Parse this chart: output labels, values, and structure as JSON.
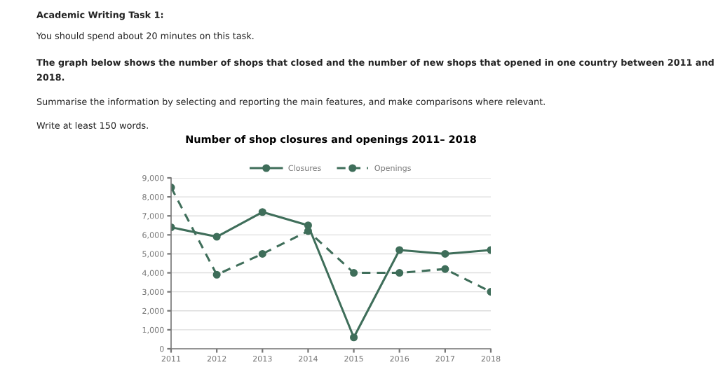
{
  "chart_data": {
    "type": "line",
    "title": "Number of shop closures and openings 2011– 2018",
    "annotations": [
      "Academic Writing Task 1:",
      "You should spend about 20 minutes on this task.",
      "The graph below shows the number of shops that closed and the number of new shops that opened in one country between 2011 and 2018.",
      "Summarise the information by selecting and reporting the main features, and make comparisons where relevant.",
      "Write at least 150 words."
    ],
    "x": [
      2011,
      2012,
      2013,
      2014,
      2015,
      2016,
      2017,
      2018
    ],
    "series": [
      {
        "name": "Closures",
        "color": "#3f6e5a",
        "line_style": "solid",
        "values": [
          6400,
          5900,
          7200,
          6500,
          600,
          5200,
          5000,
          5200
        ]
      },
      {
        "name": "Openings",
        "color": "#3f6e5a",
        "line_style": "dashed",
        "values": [
          8500,
          3900,
          5000,
          6200,
          4000,
          4000,
          4200,
          3000
        ]
      }
    ],
    "xlim": [
      2011,
      2018
    ],
    "xticks": [
      2011,
      2012,
      2013,
      2014,
      2015,
      2016,
      2017,
      2018
    ],
    "ylim": [
      0,
      9000
    ],
    "yticks": [
      {
        "value": 0,
        "label": "0"
      },
      {
        "value": 1000,
        "label": "1,000"
      },
      {
        "value": 2000,
        "label": "2,000"
      },
      {
        "value": 3000,
        "label": "3,000"
      },
      {
        "value": 4000,
        "label": "4,000"
      },
      {
        "value": 5000,
        "label": "5,000"
      },
      {
        "value": 6000,
        "label": "6,000"
      },
      {
        "value": 7000,
        "label": "7,000"
      },
      {
        "value": 8000,
        "label": "8,000"
      },
      {
        "value": 9000,
        "label": "9,000"
      }
    ],
    "grid": "y",
    "legend": "top",
    "marker": "circle"
  }
}
